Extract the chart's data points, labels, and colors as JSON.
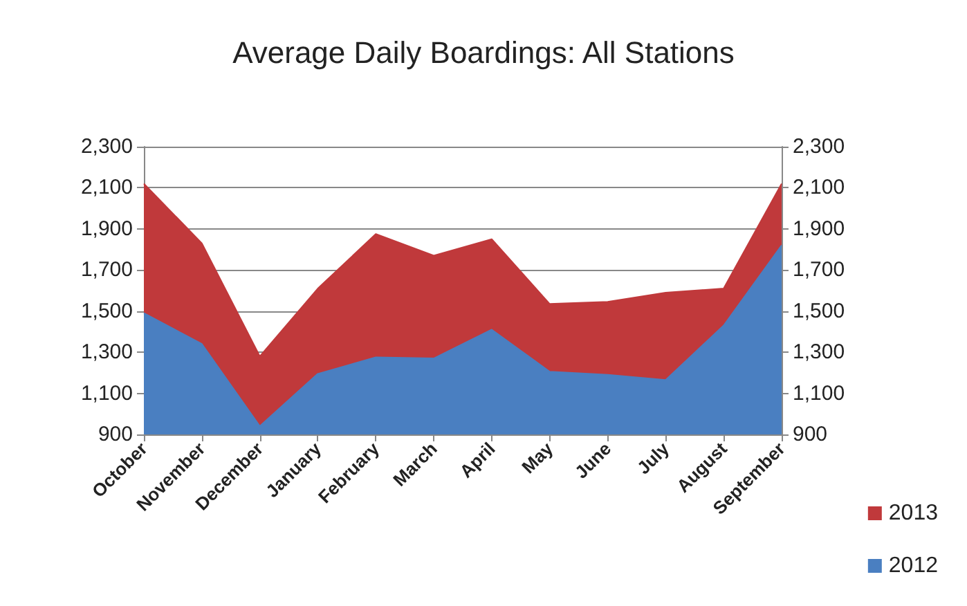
{
  "chart_data": {
    "type": "area",
    "title": "Average Daily Boardings: All Stations",
    "categories": [
      "October",
      "November",
      "December",
      "January",
      "February",
      "March",
      "April",
      "May",
      "June",
      "July",
      "August",
      "September"
    ],
    "series": [
      {
        "name": "2013",
        "color": "#c0393b",
        "values": [
          2120,
          1830,
          1280,
          1610,
          1875,
          1770,
          1850,
          1535,
          1545,
          1590,
          1610,
          2120
        ]
      },
      {
        "name": "2012",
        "color": "#4a7fc1",
        "values": [
          1490,
          1340,
          940,
          1195,
          1275,
          1270,
          1410,
          1205,
          1190,
          1165,
          1430,
          1820
        ]
      }
    ],
    "ylim": [
      900,
      2300
    ],
    "yticks": [
      900,
      {
        "value": 1100,
        "label": "1,100"
      },
      {
        "value": 1300,
        "label": "1,300"
      },
      {
        "value": 1500,
        "label": "1,500"
      },
      {
        "value": 1700,
        "label": "1,700"
      },
      {
        "value": 1900,
        "label": "1,900"
      },
      {
        "value": 2100,
        "label": "2,100"
      },
      {
        "value": 2300,
        "label": "2,300"
      }
    ],
    "y2lim": [
      900,
      2300
    ],
    "y2ticks": [
      900,
      {
        "value": 1100,
        "label": "1,100"
      },
      {
        "value": 1300,
        "label": "1,300"
      },
      {
        "value": 1500,
        "label": "1,500"
      },
      {
        "value": 1700,
        "label": "1,700"
      },
      {
        "value": 1900,
        "label": "1,900"
      },
      {
        "value": 2100,
        "label": "2,100"
      },
      {
        "value": 2300,
        "label": "2,300"
      }
    ],
    "grid": "y",
    "legend": "right"
  }
}
